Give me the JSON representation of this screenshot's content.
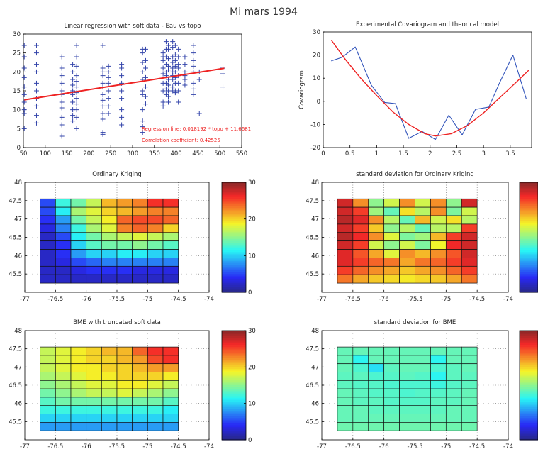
{
  "figure_title": "Mi mars 1994",
  "chart_data": [
    {
      "id": "regression",
      "type": "scatter",
      "title": "Linear regression with soft data - Eau vs topo",
      "xlabel": "",
      "ylabel": "",
      "xlim": [
        50,
        550
      ],
      "ylim": [
        0,
        30
      ],
      "xticks": [
        50,
        100,
        150,
        200,
        250,
        300,
        350,
        400,
        450,
        500,
        550
      ],
      "yticks": [
        0,
        5,
        10,
        15,
        20,
        25,
        30
      ],
      "grid": false,
      "marker_color": "#3344aa",
      "line_color": "#ee2222",
      "annotations": [
        "Regression line: 0.018192 * topo + 11.6681",
        "Correlation coefficient: 0.42525"
      ],
      "regression": {
        "slope": 0.018192,
        "intercept": 11.6681
      },
      "columns": [
        {
          "x": 52,
          "y": [
            27,
            24,
            21,
            18.5,
            16,
            14,
            12,
            10,
            9,
            5
          ]
        },
        {
          "x": 80,
          "y": [
            27,
            25,
            22,
            20,
            17,
            15,
            13,
            11,
            8.5,
            6.5
          ]
        },
        {
          "x": 138,
          "y": [
            24,
            21,
            19,
            17,
            15,
            14,
            12,
            10.5,
            8,
            6,
            3
          ]
        },
        {
          "x": 163,
          "y": [
            22,
            20,
            18,
            16.5,
            15,
            14,
            12,
            10,
            8.5,
            7
          ]
        },
        {
          "x": 172,
          "y": [
            27,
            24,
            21.5,
            19,
            17.5,
            16,
            14.5,
            13,
            11.5,
            10,
            8,
            5
          ]
        },
        {
          "x": 232,
          "y": [
            27,
            21,
            20,
            19,
            17,
            16,
            14,
            12.5,
            11,
            9,
            7.5,
            4,
            3.5
          ]
        },
        {
          "x": 245,
          "y": [
            21.5,
            20,
            18.5,
            17,
            15,
            13,
            11,
            9
          ]
        },
        {
          "x": 275,
          "y": [
            22,
            21,
            19,
            17,
            15,
            13,
            10,
            8,
            6
          ]
        },
        {
          "x": 323,
          "y": [
            26,
            25,
            22.5,
            20,
            18,
            15,
            14,
            10,
            7,
            5.5,
            4
          ]
        },
        {
          "x": 330,
          "y": [
            26,
            23,
            21,
            18.5,
            16,
            13.5,
            11.5
          ]
        },
        {
          "x": 370,
          "y": [
            25,
            24,
            23,
            21,
            19.5,
            17,
            15,
            12,
            11
          ]
        },
        {
          "x": 377,
          "y": [
            28,
            26,
            24,
            22,
            20,
            19,
            17,
            15.5,
            14
          ]
        },
        {
          "x": 382,
          "y": [
            27,
            26,
            23.5,
            21.5,
            20.5,
            18,
            16.5,
            15,
            13.5,
            12
          ]
        },
        {
          "x": 392,
          "y": [
            28,
            26.5,
            24,
            22.5,
            21,
            20,
            19,
            18,
            16,
            15
          ]
        },
        {
          "x": 398,
          "y": [
            27,
            24.5,
            23,
            21.5,
            20,
            18.5,
            17,
            15,
            14.5
          ]
        },
        {
          "x": 405,
          "y": [
            26,
            24,
            22,
            21,
            19,
            17,
            15,
            12
          ]
        },
        {
          "x": 420,
          "y": [
            24,
            22,
            20,
            19,
            18,
            16.5
          ]
        },
        {
          "x": 440,
          "y": [
            27,
            25,
            23,
            21.5,
            20,
            17,
            15.5,
            14
          ]
        },
        {
          "x": 453,
          "y": [
            20,
            18,
            9
          ]
        },
        {
          "x": 507,
          "y": [
            21,
            19.5,
            16
          ]
        }
      ]
    },
    {
      "id": "covariogram",
      "type": "line",
      "title": "Experimental Covariogram and theorical model",
      "xlabel": "",
      "ylabel": "Covariogram",
      "xlim": [
        0,
        3.9
      ],
      "ylim": [
        -20,
        30
      ],
      "xticks": [
        0,
        0.5,
        1,
        1.5,
        2,
        2.5,
        3,
        3.5
      ],
      "yticks": [
        -20,
        -10,
        0,
        10,
        20,
        30
      ],
      "grid": false,
      "series": [
        {
          "kind": "experimental",
          "color": "#3355bb",
          "x": [
            0.15,
            0.35,
            0.6,
            0.9,
            1.15,
            1.35,
            1.6,
            1.85,
            2.1,
            2.35,
            2.6,
            2.85,
            3.1,
            3.3,
            3.55,
            3.8
          ],
          "y": [
            17.5,
            19,
            23.5,
            7,
            -0.5,
            -1,
            -16,
            -13,
            -16.5,
            -6,
            -14.5,
            -3.5,
            -2.5,
            8,
            20,
            1
          ]
        },
        {
          "kind": "model",
          "color": "#ee2222",
          "x": [
            0.15,
            0.4,
            0.7,
            1.0,
            1.3,
            1.6,
            1.9,
            2.1,
            2.4,
            2.7,
            3.0,
            3.3,
            3.6,
            3.85
          ],
          "y": [
            26.5,
            18.5,
            10,
            2.5,
            -4.5,
            -10,
            -14,
            -15,
            -14,
            -10.5,
            -5,
            1.5,
            8,
            13.5
          ]
        }
      ]
    },
    {
      "id": "ordinary-kriging",
      "type": "heatmap",
      "title": "Ordinary Kriging",
      "xlim": [
        -77,
        -74
      ],
      "ylim": [
        45,
        48
      ],
      "xticks": [
        -77,
        -76.5,
        -76,
        -75.5,
        -75,
        -74.5,
        -74
      ],
      "xticklabels": [
        "-77",
        "-76.5",
        "-76",
        "-75.5",
        "-75",
        "-74.5",
        "-74"
      ],
      "yticks": [
        45.5,
        46,
        46.5,
        47,
        47.5,
        48
      ],
      "grid": true,
      "colorbar": {
        "ticks": [
          0,
          10,
          20,
          30
        ],
        "show_labels": true
      },
      "cmap_range": [
        0,
        30
      ],
      "extent": {
        "x": [
          -76.75,
          -74.5
        ],
        "y": [
          45.25,
          47.55
        ]
      },
      "values": [
        [
          5,
          12,
          14,
          17,
          21,
          22,
          23,
          26,
          26
        ],
        [
          5,
          11,
          16,
          18,
          20,
          21,
          22,
          23,
          23
        ],
        [
          4,
          8,
          14,
          17,
          19,
          24,
          25,
          25,
          24
        ],
        [
          3,
          7,
          12,
          16,
          18,
          23,
          24,
          23,
          20
        ],
        [
          2,
          5,
          11,
          14,
          16,
          17,
          18,
          17,
          16
        ],
        [
          2,
          4,
          10,
          13,
          14,
          14,
          15,
          14,
          13
        ],
        [
          2,
          4,
          8,
          10,
          10,
          11,
          11,
          10,
          10
        ],
        [
          2,
          3,
          5,
          6,
          7,
          7,
          7,
          7,
          7
        ],
        [
          2,
          2,
          3,
          4,
          4,
          4,
          3,
          3,
          3
        ],
        [
          2,
          2,
          2,
          2,
          2,
          2,
          2,
          2,
          2
        ]
      ]
    },
    {
      "id": "std-ordinary-kriging",
      "type": "heatmap",
      "title": "standard deviation for Ordinary Kriging",
      "xlim": [
        -77,
        -74
      ],
      "ylim": [
        45,
        48
      ],
      "xticks": [
        -77,
        -76.5,
        -76,
        -75.5,
        -75,
        -74.5,
        -74
      ],
      "xticklabels": [
        "-77",
        "-76.5",
        "-76",
        "-75.5",
        "-75",
        "-74.5",
        "-74"
      ],
      "yticks": [
        45.5,
        46,
        46.5,
        47,
        47.5,
        48
      ],
      "grid": true,
      "colorbar": {
        "ticks": [
          0,
          10,
          20,
          30
        ],
        "show_labels": false
      },
      "cmap_range": [
        0,
        1
      ],
      "extent": {
        "x": [
          -76.75,
          -74.5
        ],
        "y": [
          45.25,
          47.55
        ]
      },
      "values": [
        [
          0.92,
          0.75,
          0.5,
          0.58,
          0.75,
          0.58,
          0.75,
          0.5,
          0.92
        ],
        [
          0.92,
          0.85,
          0.52,
          0.45,
          0.65,
          0.55,
          0.75,
          0.48,
          0.58
        ],
        [
          0.95,
          0.9,
          0.75,
          0.55,
          0.45,
          0.7,
          0.58,
          0.65,
          0.55
        ],
        [
          0.92,
          0.85,
          0.68,
          0.5,
          0.55,
          0.45,
          0.55,
          0.55,
          0.85
        ],
        [
          0.95,
          0.88,
          0.75,
          0.6,
          0.48,
          0.52,
          0.7,
          0.85,
          0.92
        ],
        [
          0.92,
          0.85,
          0.58,
          0.5,
          0.58,
          0.48,
          0.62,
          0.88,
          0.92
        ],
        [
          0.9,
          0.82,
          0.72,
          0.6,
          0.75,
          0.7,
          0.75,
          0.82,
          0.92
        ],
        [
          0.9,
          0.85,
          0.8,
          0.78,
          0.72,
          0.78,
          0.8,
          0.85,
          0.9
        ],
        [
          0.85,
          0.8,
          0.75,
          0.72,
          0.68,
          0.72,
          0.75,
          0.8,
          0.85
        ],
        [
          0.78,
          0.72,
          0.68,
          0.66,
          0.64,
          0.66,
          0.68,
          0.72,
          0.78
        ]
      ]
    },
    {
      "id": "bme",
      "type": "heatmap",
      "title": "BME with truncated soft data",
      "xlim": [
        -77,
        -74
      ],
      "ylim": [
        45,
        48
      ],
      "xticks": [
        -77,
        -76.5,
        -76,
        -75.5,
        -75,
        -74.5,
        -74
      ],
      "xticklabels": [
        "-77",
        "-76.5",
        "-76",
        "-75.5",
        "-75",
        "-74.5",
        "-74"
      ],
      "yticks": [
        45.5,
        46,
        46.5,
        47,
        47.5,
        48
      ],
      "grid": true,
      "colorbar": {
        "ticks": [
          0,
          10,
          20,
          30
        ],
        "show_labels": true
      },
      "cmap_range": [
        0,
        30
      ],
      "extent": {
        "x": [
          -76.75,
          -74.5
        ],
        "y": [
          45.25,
          47.55
        ]
      },
      "values": [
        [
          17,
          18,
          19,
          20,
          21,
          21,
          24,
          26,
          26
        ],
        [
          17,
          18,
          19,
          20,
          20,
          21,
          22,
          25,
          26
        ],
        [
          17,
          18,
          19,
          19,
          20,
          20,
          21,
          22,
          22
        ],
        [
          16,
          17,
          18,
          19,
          19,
          20,
          20,
          20,
          19
        ],
        [
          15,
          16,
          17,
          18,
          18,
          19,
          19,
          18,
          17
        ],
        [
          14,
          15,
          16,
          17,
          17,
          18,
          17,
          16,
          15
        ],
        [
          13,
          14,
          14,
          14,
          14,
          14,
          14,
          14,
          13
        ],
        [
          12,
          12,
          12,
          12,
          12,
          12,
          12,
          12,
          11
        ],
        [
          10,
          10,
          10,
          10,
          10,
          10,
          10,
          10,
          10
        ],
        [
          8,
          8,
          8,
          8,
          8,
          8,
          8,
          8,
          8
        ]
      ]
    },
    {
      "id": "std-bme",
      "type": "heatmap",
      "title": "standard deviation for BME",
      "xlim": [
        -77,
        -74
      ],
      "ylim": [
        45,
        48
      ],
      "xticks": [
        -77,
        -76.5,
        -76,
        -75.5,
        -75,
        -74.5,
        -74
      ],
      "xticklabels": [
        "-77",
        "-76.5",
        "-76",
        "-75.5",
        "-75",
        "-74.5",
        "-74"
      ],
      "yticks": [
        45.5,
        46,
        46.5,
        47,
        47.5,
        48
      ],
      "grid": true,
      "colorbar": {
        "ticks": [
          0,
          10,
          20,
          30
        ],
        "show_labels": false
      },
      "cmap_range": [
        0,
        1
      ],
      "extent": {
        "x": [
          -76.75,
          -74.5
        ],
        "y": [
          45.25,
          47.55
        ]
      },
      "values": [
        [
          0.45,
          0.45,
          0.45,
          0.45,
          0.45,
          0.45,
          0.45,
          0.45,
          0.45
        ],
        [
          0.45,
          0.38,
          0.45,
          0.45,
          0.45,
          0.45,
          0.38,
          0.45,
          0.45
        ],
        [
          0.45,
          0.42,
          0.35,
          0.44,
          0.45,
          0.45,
          0.42,
          0.44,
          0.45
        ],
        [
          0.44,
          0.44,
          0.42,
          0.43,
          0.44,
          0.43,
          0.38,
          0.44,
          0.44
        ],
        [
          0.44,
          0.43,
          0.43,
          0.42,
          0.42,
          0.42,
          0.4,
          0.43,
          0.44
        ],
        [
          0.45,
          0.44,
          0.43,
          0.43,
          0.42,
          0.43,
          0.43,
          0.44,
          0.45
        ],
        [
          0.45,
          0.44,
          0.44,
          0.43,
          0.43,
          0.43,
          0.44,
          0.44,
          0.45
        ],
        [
          0.45,
          0.45,
          0.44,
          0.44,
          0.44,
          0.44,
          0.44,
          0.45,
          0.45
        ],
        [
          0.45,
          0.45,
          0.45,
          0.45,
          0.45,
          0.45,
          0.45,
          0.45,
          0.45
        ],
        [
          0.46,
          0.46,
          0.46,
          0.46,
          0.46,
          0.46,
          0.46,
          0.46,
          0.46
        ]
      ]
    }
  ]
}
